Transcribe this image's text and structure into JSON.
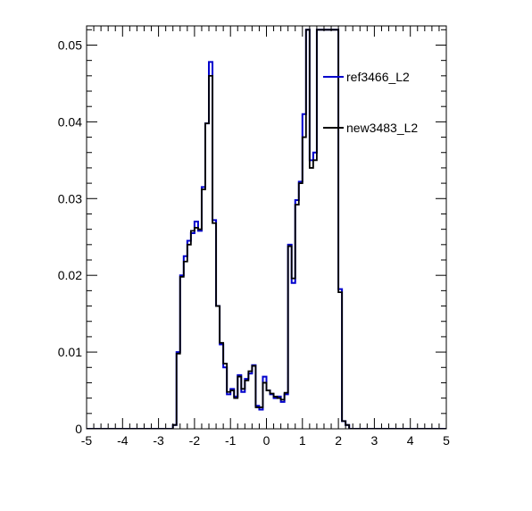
{
  "chart_data": {
    "type": "line",
    "title": "",
    "xlabel": "",
    "ylabel": "",
    "xlim": [
      -5,
      5
    ],
    "ylim": [
      0,
      0.0525
    ],
    "grid": false,
    "legend_position": "top-right",
    "x_ticks": [
      "-5",
      "-4",
      "-3",
      "-2",
      "-1",
      "0",
      "1",
      "2",
      "3",
      "4",
      "5"
    ],
    "y_ticks": [
      "0",
      "0.01",
      "0.02",
      "0.03",
      "0.04",
      "0.05"
    ],
    "bin_edges": [
      -2.6,
      -2.5,
      -2.4,
      -2.3,
      -2.2,
      -2.1,
      -2.0,
      -1.9,
      -1.8,
      -1.7,
      -1.6,
      -1.5,
      -1.4,
      -1.3,
      -1.2,
      -1.1,
      -1.0,
      -0.9,
      -0.8,
      -0.7,
      -0.6,
      -0.5,
      -0.4,
      -0.3,
      -0.2,
      -0.1,
      0.0,
      0.1,
      0.2,
      0.3,
      0.4,
      0.5,
      0.6,
      0.7,
      0.8,
      0.9,
      1.0,
      1.1,
      1.2,
      1.3,
      1.4,
      1.5,
      1.6,
      1.7,
      1.8,
      1.9,
      2.0,
      2.1,
      2.2,
      2.3,
      2.4,
      2.5,
      2.6
    ],
    "series": [
      {
        "name": "ref3466_L2",
        "color": "#0000cc",
        "values": [
          0.0005,
          0.01,
          0.02,
          0.0225,
          0.0245,
          0.0255,
          0.027,
          0.0258,
          0.0315,
          0.0398,
          0.0478,
          0.0272,
          0.016,
          0.011,
          0.008,
          0.0045,
          0.0052,
          0.0042,
          0.007,
          0.0048,
          0.0065,
          0.0072,
          0.0083,
          0.003,
          0.0025,
          0.0068,
          0.005,
          0.0045,
          0.004,
          0.0042,
          0.0035,
          0.0045,
          0.024,
          0.019,
          0.0298,
          0.0322,
          0.041,
          0.052,
          0.035,
          0.036,
          0.052,
          0.052,
          0.052,
          0.052,
          0.052,
          0.052,
          0.0182,
          0.001,
          0.0005,
          0.0,
          0.0,
          0.0
        ]
      },
      {
        "name": "new3483_L2",
        "color": "#000000",
        "values": [
          0.0005,
          0.0098,
          0.0198,
          0.0218,
          0.024,
          0.0258,
          0.0262,
          0.026,
          0.0312,
          0.0398,
          0.046,
          0.0268,
          0.016,
          0.0112,
          0.0085,
          0.0048,
          0.005,
          0.004,
          0.0068,
          0.0052,
          0.0063,
          0.0075,
          0.0082,
          0.0028,
          0.0028,
          0.006,
          0.005,
          0.0046,
          0.0042,
          0.004,
          0.0038,
          0.0047,
          0.0238,
          0.0196,
          0.0292,
          0.032,
          0.038,
          0.052,
          0.034,
          0.035,
          0.052,
          0.052,
          0.052,
          0.052,
          0.052,
          0.052,
          0.0178,
          0.001,
          0.0005,
          0.0,
          0.0,
          0.0
        ]
      }
    ]
  }
}
